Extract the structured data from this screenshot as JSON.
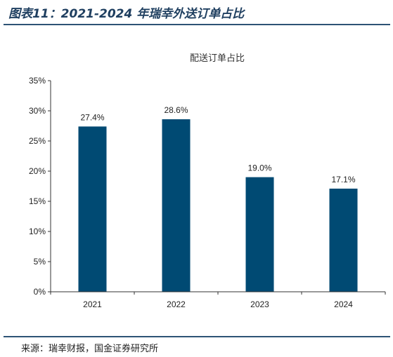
{
  "figure": {
    "title": "图表11：2021-2024 年瑞幸外送订单占比",
    "source": "来源：瑞幸财报，国金证券研究所"
  },
  "chart_data": {
    "type": "bar",
    "title": "配送订单占比",
    "categories": [
      "2021",
      "2022",
      "2023",
      "2024"
    ],
    "values": [
      27.4,
      28.6,
      19.0,
      17.1
    ],
    "data_labels": [
      "27.4%",
      "28.6%",
      "19.0%",
      "17.1%"
    ],
    "y_ticks": [
      "0%",
      "5%",
      "10%",
      "15%",
      "20%",
      "25%",
      "30%",
      "35%"
    ],
    "ylim": [
      0,
      35
    ],
    "xlabel": "",
    "ylabel": "",
    "grid": false,
    "legend": "none",
    "bar_color": "#004a73"
  }
}
